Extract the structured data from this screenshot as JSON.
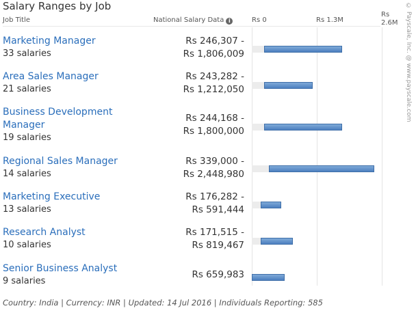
{
  "title": "Salary Ranges by Job",
  "headers": {
    "job_title": "Job Title",
    "national": "National Salary Data",
    "info_icon": "info-icon"
  },
  "credit": "© Payscale, Inc. @ www.payscale.com",
  "chart_data": {
    "type": "bar",
    "orientation": "horizontal-range",
    "axis": {
      "min": 0,
      "max": 2600000,
      "ticks": [
        {
          "value": 0,
          "label": "Rs 0"
        },
        {
          "value": 1300000,
          "label": "Rs 1.3M"
        },
        {
          "value": 2600000,
          "label": "Rs 2.6M"
        }
      ]
    },
    "grid": true,
    "rows": [
      {
        "job": "Marketing Manager",
        "count_label": "33 salaries",
        "range_lines": [
          "Rs 246,307 -",
          "Rs 1,806,009"
        ],
        "low": 246307,
        "high": 1806009
      },
      {
        "job": "Area Sales Manager",
        "count_label": "21 salaries",
        "range_lines": [
          "Rs 243,282 -",
          "Rs 1,212,050"
        ],
        "low": 243282,
        "high": 1212050
      },
      {
        "job": "Business Development Manager",
        "count_label": "19 salaries",
        "range_lines": [
          "Rs 244,168 -",
          "Rs 1,800,000"
        ],
        "low": 244168,
        "high": 1800000
      },
      {
        "job": "Regional Sales Manager",
        "count_label": "14 salaries",
        "range_lines": [
          "Rs 339,000 -",
          "Rs 2,448,980"
        ],
        "low": 339000,
        "high": 2448980
      },
      {
        "job": "Marketing Executive",
        "count_label": "13 salaries",
        "range_lines": [
          "Rs 176,282 -",
          "Rs 591,444"
        ],
        "low": 176282,
        "high": 591444
      },
      {
        "job": "Research Analyst",
        "count_label": "10 salaries",
        "range_lines": [
          "Rs 171,515 -",
          "Rs 819,467"
        ],
        "low": 171515,
        "high": 819467
      },
      {
        "job": "Senior Business Analyst",
        "count_label": "9 salaries",
        "range_lines": [
          "Rs 659,983"
        ],
        "low": 0,
        "high": 659983
      }
    ]
  },
  "footer": "Country: India | Currency: INR | Updated: 14 Jul 2016 | Individuals Reporting: 585"
}
